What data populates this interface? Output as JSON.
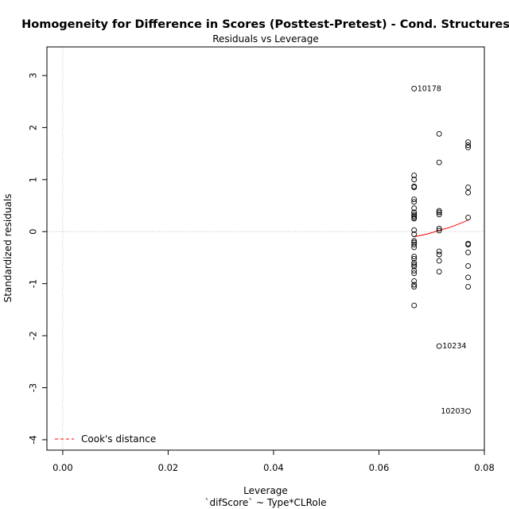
{
  "chart_data": {
    "type": "scatter",
    "title": "Homogeneity for Difference in Scores (Posttest-Pretest) - Cond. Structures",
    "subtitle": "Residuals vs Leverage",
    "xlabel": "Leverage",
    "xlabel2": "`difScore` ~ Type*CLRole",
    "ylabel": "Standardized residuals",
    "xlim": [
      -0.003,
      0.08
    ],
    "ylim": [
      -4.2,
      3.55
    ],
    "xticks": [
      0.0,
      0.02,
      0.04,
      0.06,
      0.08
    ],
    "xtick_labels": [
      "0.00",
      "0.02",
      "0.04",
      "0.06",
      "0.08"
    ],
    "yticks": [
      3,
      2,
      1,
      0,
      -1,
      -2,
      -3,
      -4
    ],
    "ytick_labels": [
      "3",
      "2",
      "1",
      "0",
      "-1",
      "-2",
      "-3",
      "-4"
    ],
    "grid": false,
    "reference_lines": {
      "vertical_x": 0,
      "horizontal_y": 0,
      "style": "dotted",
      "color": "#bdbdbd"
    },
    "series": [
      {
        "group": "leverage-0.0667",
        "x": 0.06667,
        "y": [
          2.75,
          1.08,
          1.0,
          0.87,
          0.85,
          0.62,
          0.57,
          0.45,
          0.37,
          0.33,
          0.3,
          0.27,
          0.25,
          0.03,
          -0.05,
          -0.18,
          -0.21,
          -0.25,
          -0.3,
          -0.48,
          -0.52,
          -0.6,
          -0.64,
          -0.67,
          -0.75,
          -0.8,
          -0.95,
          -1.02,
          -1.06,
          -1.42
        ]
      },
      {
        "group": "leverage-0.0714",
        "x": 0.07143,
        "y": [
          1.88,
          1.33,
          0.4,
          0.37,
          0.33,
          0.06,
          0.02,
          -0.38,
          -0.44,
          -0.56,
          -0.77,
          -2.2
        ]
      },
      {
        "group": "leverage-0.0769",
        "x": 0.07692,
        "y": [
          1.72,
          1.66,
          1.62,
          0.85,
          0.75,
          0.27,
          -0.23,
          -0.25,
          -0.4,
          -0.66,
          -0.88,
          -1.06,
          -3.45
        ]
      }
    ],
    "smoother": {
      "color": "#ff0000",
      "points": [
        [
          0.06667,
          -0.1
        ],
        [
          0.069,
          -0.05
        ],
        [
          0.07143,
          0.02
        ],
        [
          0.074,
          0.1
        ],
        [
          0.07692,
          0.22
        ]
      ]
    },
    "point_labels": [
      {
        "text": "10178",
        "x": 0.06667,
        "y": 2.75,
        "side": "right"
      },
      {
        "text": "10234",
        "x": 0.07143,
        "y": -2.2,
        "side": "right"
      },
      {
        "text": "10203",
        "x": 0.07692,
        "y": -3.45,
        "side": "left"
      }
    ],
    "legend": {
      "placement": "bottom-left",
      "entries": [
        {
          "label": "Cook's distance",
          "color": "#ff0000",
          "style": "dashed"
        }
      ]
    }
  }
}
